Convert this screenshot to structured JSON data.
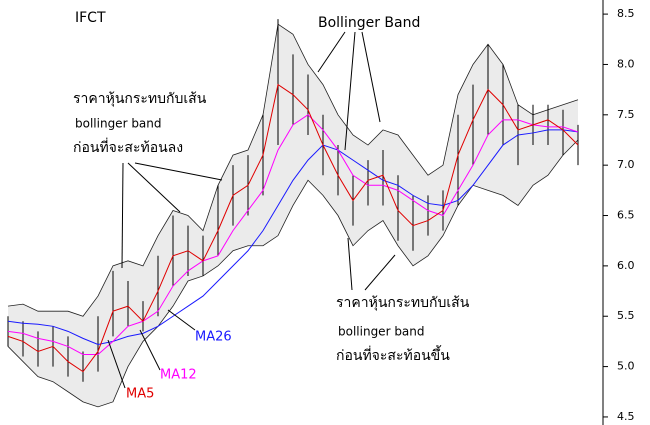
{
  "chart_data": {
    "type": "stock",
    "title": "IFCT",
    "band_label": "Bollinger Band",
    "annotations": [
      [
        "ราคาหุ้นกระทบกับเส้น",
        "bollinger band",
        "ก่อนที่จะสะท้อนลง"
      ],
      [
        "ราคาหุ้นกระทบกับเส้น",
        "bollinger band",
        "ก่อนที่จะสะท้อนขึ้น"
      ]
    ],
    "ylim": [
      4.42,
      8.64
    ],
    "yticks": [
      4.5,
      {
        "value": 5,
        "label": "5.0"
      },
      5.5,
      {
        "value": 6,
        "label": "6.0"
      },
      6.5,
      {
        "value": 7,
        "label": "7.0"
      },
      7.5,
      {
        "value": 8,
        "label": "8.0"
      },
      8.5
    ],
    "bands": {
      "color": "#ebebeb",
      "upper": [
        5.6,
        5.62,
        5.55,
        5.55,
        5.55,
        5.5,
        5.7,
        6.0,
        6.05,
        6.0,
        6.3,
        6.55,
        6.5,
        6.35,
        6.8,
        7.1,
        7.15,
        7.5,
        8.4,
        8.3,
        8.0,
        7.8,
        7.5,
        7.3,
        7.2,
        7.35,
        7.3,
        7.1,
        6.9,
        7.0,
        7.7,
        8.0,
        8.2,
        8.0,
        7.6,
        7.5,
        7.55,
        7.6,
        7.65
      ],
      "lower": [
        5.2,
        5.05,
        4.9,
        4.85,
        4.75,
        4.65,
        4.6,
        4.65,
        5.0,
        5.25,
        5.4,
        5.6,
        5.85,
        5.9,
        6.0,
        6.15,
        6.2,
        6.2,
        6.3,
        6.6,
        6.85,
        6.7,
        6.5,
        6.2,
        6.35,
        6.45,
        6.2,
        6.0,
        6.1,
        6.3,
        6.6,
        6.8,
        6.75,
        6.7,
        6.6,
        6.8,
        6.9,
        7.1,
        7.25
      ]
    },
    "bars": {
      "color": "#000000",
      "high": [
        5.5,
        5.45,
        5.35,
        5.4,
        5.3,
        5.15,
        5.5,
        5.95,
        5.85,
        5.65,
        6.1,
        6.5,
        6.4,
        6.3,
        6.8,
        7.0,
        7.1,
        7.5,
        8.45,
        8.1,
        7.9,
        7.5,
        7.2,
        6.9,
        7.05,
        7.15,
        6.9,
        6.7,
        6.7,
        6.75,
        7.5,
        7.8,
        8.2,
        8.0,
        7.6,
        7.6,
        7.6,
        7.55,
        7.4
      ],
      "low": [
        5.2,
        5.1,
        5.0,
        5.0,
        4.9,
        4.85,
        4.95,
        5.3,
        5.4,
        5.35,
        5.5,
        5.8,
        5.9,
        5.9,
        6.1,
        6.4,
        6.5,
        6.7,
        7.2,
        7.4,
        7.3,
        6.9,
        6.7,
        6.4,
        6.6,
        6.6,
        6.25,
        6.15,
        6.3,
        6.35,
        6.6,
        7.0,
        7.3,
        7.2,
        7.0,
        7.2,
        7.2,
        7.1,
        7.0
      ]
    },
    "series": [
      {
        "name": "MA26",
        "color": "#1a1aff",
        "values": [
          5.45,
          5.43,
          5.42,
          5.4,
          5.35,
          5.28,
          5.22,
          5.25,
          5.3,
          5.33,
          5.4,
          5.5,
          5.6,
          5.7,
          5.85,
          6.0,
          6.15,
          6.35,
          6.6,
          6.85,
          7.05,
          7.2,
          7.15,
          7.05,
          6.95,
          6.85,
          6.8,
          6.7,
          6.62,
          6.6,
          6.65,
          6.8,
          7.0,
          7.2,
          7.3,
          7.32,
          7.35,
          7.35,
          7.33
        ]
      },
      {
        "name": "MA12",
        "color": "#ff00ff",
        "values": [
          5.35,
          5.33,
          5.28,
          5.25,
          5.2,
          5.12,
          5.12,
          5.25,
          5.4,
          5.45,
          5.55,
          5.8,
          5.95,
          6.05,
          6.1,
          6.35,
          6.55,
          6.75,
          7.15,
          7.4,
          7.5,
          7.35,
          7.15,
          6.9,
          6.8,
          6.8,
          6.75,
          6.65,
          6.55,
          6.5,
          6.75,
          7.0,
          7.3,
          7.45,
          7.45,
          7.4,
          7.38,
          7.38,
          7.33
        ]
      },
      {
        "name": "MA5",
        "color": "#e00000",
        "values": [
          5.3,
          5.25,
          5.15,
          5.2,
          5.05,
          4.95,
          5.15,
          5.55,
          5.6,
          5.45,
          5.75,
          6.1,
          6.15,
          6.05,
          6.35,
          6.7,
          6.8,
          7.1,
          7.8,
          7.7,
          7.55,
          7.2,
          6.9,
          6.65,
          6.85,
          6.9,
          6.55,
          6.4,
          6.45,
          6.55,
          7.1,
          7.45,
          7.75,
          7.6,
          7.35,
          7.4,
          7.45,
          7.35,
          7.2
        ]
      }
    ]
  }
}
